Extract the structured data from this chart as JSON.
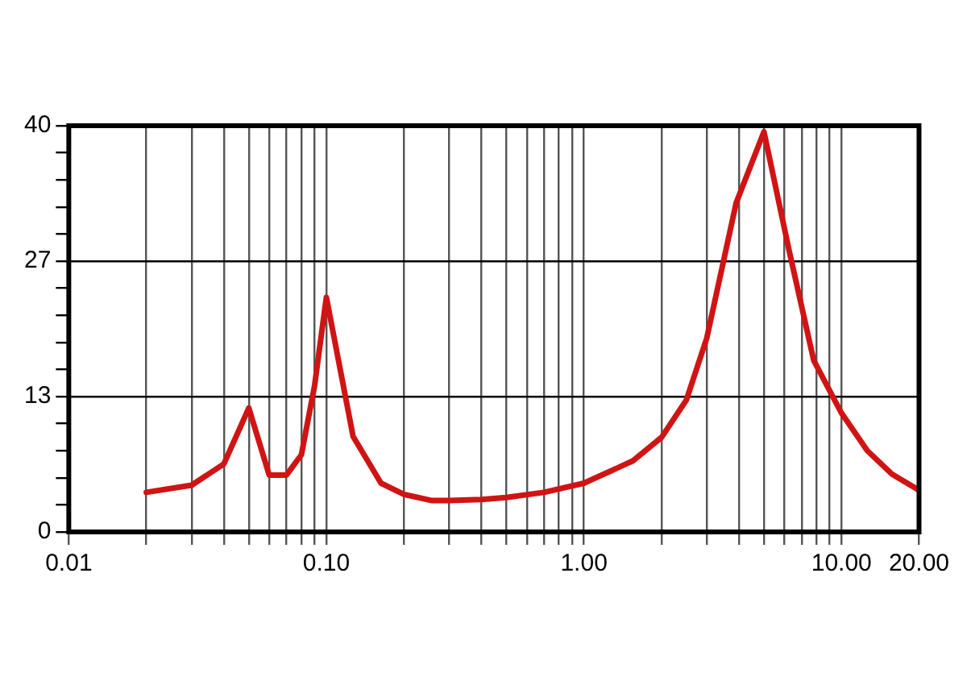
{
  "chart_data": {
    "type": "line",
    "log": "x",
    "x": [
      0.02,
      0.03,
      0.04,
      0.05,
      0.06,
      0.07,
      0.08,
      0.09,
      0.1,
      0.127,
      0.163,
      0.2,
      0.255,
      0.3,
      0.4,
      0.5,
      0.7,
      1,
      1.55,
      2,
      2.5,
      3,
      3.9,
      5,
      6.25,
      7.8,
      10,
      12.6,
      15.7,
      20
    ],
    "series": [
      {
        "color": "#d01414",
        "values": [
          3.9,
          4.6,
          6.7,
          12.2,
          5.6,
          5.6,
          7.6,
          14.4,
          23.1,
          9.4,
          4.8,
          3.7,
          3.1,
          3.1,
          3.2,
          3.4,
          3.9,
          4.8,
          7.0,
          9.3,
          13.0,
          19.1,
          32.4,
          39.4,
          27.8,
          16.9,
          11.7,
          8.0,
          5.7,
          4.1
        ]
      }
    ],
    "xlim": [
      0.01,
      20
    ],
    "xticks": [
      {
        "value": 0.01,
        "label": "0.01"
      },
      {
        "value": 0.02,
        "label": null
      },
      {
        "value": 0.03,
        "label": null
      },
      {
        "value": 0.04,
        "label": null
      },
      {
        "value": 0.05,
        "label": null
      },
      {
        "value": 0.06,
        "label": null
      },
      {
        "value": 0.07,
        "label": null
      },
      {
        "value": 0.08,
        "label": null
      },
      {
        "value": 0.09,
        "label": null
      },
      {
        "value": 0.1,
        "label": "0.10"
      },
      {
        "value": 0.2,
        "label": null
      },
      {
        "value": 0.3,
        "label": null
      },
      {
        "value": 0.4,
        "label": null
      },
      {
        "value": 0.5,
        "label": null
      },
      {
        "value": 0.6,
        "label": null
      },
      {
        "value": 0.7,
        "label": null
      },
      {
        "value": 0.8,
        "label": null
      },
      {
        "value": 0.9,
        "label": null
      },
      {
        "value": 1,
        "label": "1.00"
      },
      {
        "value": 2,
        "label": null
      },
      {
        "value": 3,
        "label": null
      },
      {
        "value": 4,
        "label": null
      },
      {
        "value": 5,
        "label": null
      },
      {
        "value": 6,
        "label": null
      },
      {
        "value": 7,
        "label": null
      },
      {
        "value": 8,
        "label": null
      },
      {
        "value": 9,
        "label": null
      },
      {
        "value": 10,
        "label": "10.00"
      },
      {
        "value": 20,
        "label": "20.00"
      }
    ],
    "ylim": [
      0,
      40
    ],
    "yticks": [
      0,
      {
        "value": 2.67,
        "label": null
      },
      {
        "value": 5.33,
        "label": null
      },
      {
        "value": 8,
        "label": null
      },
      {
        "value": 10.67,
        "label": null
      },
      {
        "value": 13.33,
        "label": "13"
      },
      {
        "value": 16,
        "label": null
      },
      {
        "value": 18.67,
        "label": null
      },
      {
        "value": 21.33,
        "label": null
      },
      {
        "value": 24,
        "label": null
      },
      {
        "value": 26.67,
        "label": "27"
      },
      {
        "value": 29.33,
        "label": null
      },
      {
        "value": 32,
        "label": null
      },
      {
        "value": 34.67,
        "label": null
      },
      {
        "value": 37.33,
        "label": null
      },
      40
    ],
    "grid": true,
    "marker": "none",
    "line_style": "solid"
  }
}
